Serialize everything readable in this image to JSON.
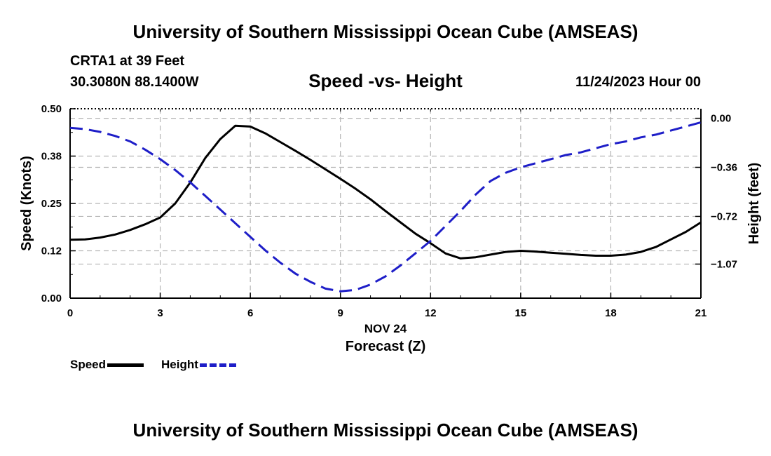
{
  "page": {
    "title": "University of Southern Mississippi Ocean Cube (AMSEAS)",
    "footer_title": "University of Southern Mississippi Ocean Cube (AMSEAS)",
    "station": "CRTA1 at 39 Feet",
    "coords": "30.3080N  88.1400W",
    "datetime": "11/24/2023 Hour 00"
  },
  "chart_data": {
    "type": "line",
    "title": "Speed -vs- Height",
    "xlabel": "Forecast (Z)",
    "xlabel_date": "NOV 24",
    "ylabel": "Speed (Knots)",
    "y2label": "Height (feet)",
    "xlim": [
      0,
      21
    ],
    "ylim": [
      0,
      0.5
    ],
    "y2lim": [
      -1.32,
      0.07
    ],
    "x_ticks": [
      "0",
      "3",
      "6",
      "9",
      "12",
      "15",
      "18",
      "21"
    ],
    "x_tick_values": [
      0,
      3,
      6,
      9,
      12,
      15,
      18,
      21
    ],
    "y_ticks": [
      "0.00",
      "0.12",
      "0.25",
      "0.38",
      "0.50"
    ],
    "y_tick_values": [
      0,
      0.125,
      0.25,
      0.375,
      0.5
    ],
    "y2_ticks": [
      "0.00",
      "−0.36",
      "−0.72",
      "−1.07"
    ],
    "y2_tick_values": [
      0,
      -0.36,
      -0.72,
      -1.07
    ],
    "grid": true,
    "series": [
      {
        "name": "Speed",
        "axis": "left",
        "color": "#000000",
        "style": "solid",
        "x": [
          0,
          0.5,
          1,
          1.5,
          2,
          2.5,
          3,
          3.5,
          4,
          4.5,
          5,
          5.5,
          6,
          6.5,
          7,
          7.5,
          8,
          8.5,
          9,
          9.5,
          10,
          10.5,
          11,
          11.5,
          12,
          12.5,
          13,
          13.5,
          14,
          14.5,
          15,
          15.5,
          16,
          16.5,
          17,
          17.5,
          18,
          18.5,
          19,
          19.5,
          20,
          20.5,
          21
        ],
        "values": [
          0.154,
          0.155,
          0.16,
          0.168,
          0.18,
          0.195,
          0.213,
          0.25,
          0.305,
          0.37,
          0.42,
          0.455,
          0.453,
          0.435,
          0.412,
          0.389,
          0.365,
          0.34,
          0.315,
          0.289,
          0.261,
          0.23,
          0.2,
          0.17,
          0.145,
          0.118,
          0.105,
          0.108,
          0.115,
          0.122,
          0.125,
          0.123,
          0.12,
          0.117,
          0.114,
          0.112,
          0.112,
          0.115,
          0.122,
          0.135,
          0.155,
          0.175,
          0.2
        ]
      },
      {
        "name": "Height",
        "axis": "right",
        "color": "#1e1ec8",
        "style": "dashed",
        "x": [
          0,
          0.5,
          1,
          1.5,
          2,
          2.5,
          3,
          3.5,
          4,
          4.5,
          5,
          5.5,
          6,
          6.5,
          7,
          7.5,
          8,
          8.5,
          9,
          9.5,
          10,
          10.5,
          11,
          11.5,
          12,
          12.5,
          13,
          13.5,
          14,
          14.5,
          15,
          15.5,
          16,
          16.5,
          17,
          17.5,
          18,
          18.5,
          19,
          19.5,
          20,
          20.5,
          21
        ],
        "values": [
          -0.07,
          -0.08,
          -0.1,
          -0.13,
          -0.17,
          -0.23,
          -0.3,
          -0.38,
          -0.47,
          -0.57,
          -0.67,
          -0.77,
          -0.87,
          -0.97,
          -1.06,
          -1.14,
          -1.2,
          -1.25,
          -1.27,
          -1.26,
          -1.22,
          -1.16,
          -1.08,
          -0.99,
          -0.9,
          -0.79,
          -0.68,
          -0.56,
          -0.46,
          -0.4,
          -0.36,
          -0.33,
          -0.3,
          -0.27,
          -0.25,
          -0.22,
          -0.19,
          -0.17,
          -0.14,
          -0.12,
          -0.09,
          -0.06,
          -0.03
        ]
      }
    ]
  }
}
